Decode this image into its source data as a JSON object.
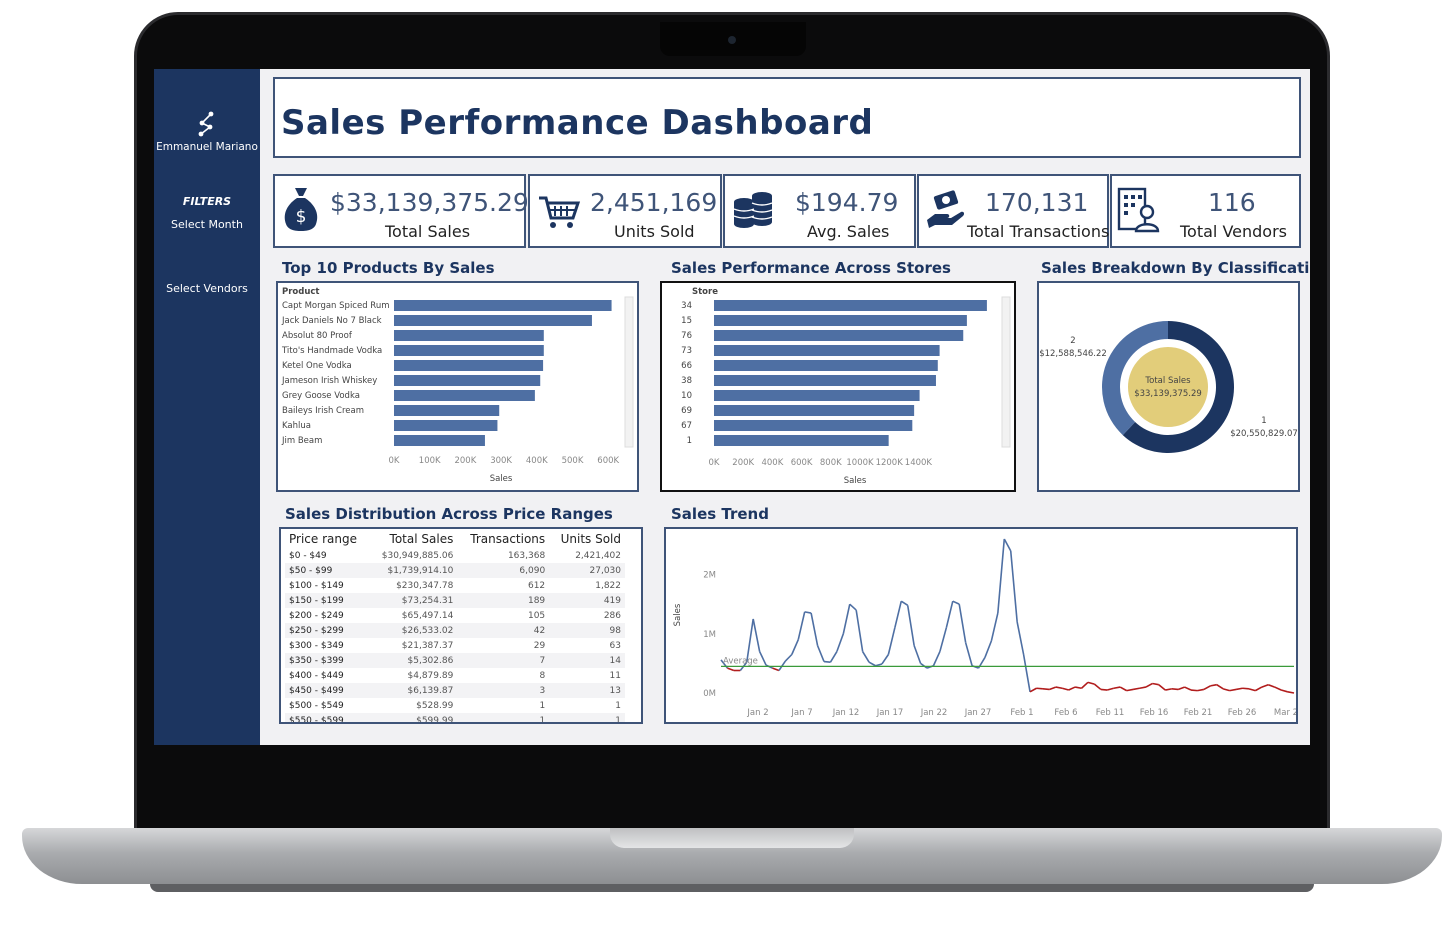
{
  "sidebar": {
    "brand": "Emmanuel Mariano",
    "filters_heading": "FILTERS",
    "select_month": "Select Month",
    "select_vendors": "Select Vendors"
  },
  "header": {
    "title": "Sales Performance  Dashboard"
  },
  "kpis": [
    {
      "value": "$33,139,375.29",
      "label": "Total Sales",
      "icon": "money-bag-icon"
    },
    {
      "value": "2,451,169",
      "label": "Units Sold",
      "icon": "shopping-cart-icon"
    },
    {
      "value": "$194.79",
      "label": "Avg. Sales",
      "icon": "coin-stack-icon"
    },
    {
      "value": "170,131",
      "label": "Total Transactions",
      "icon": "hand-payment-icon"
    },
    {
      "value": "116",
      "label": "Total Vendors",
      "icon": "vendor-building-icon"
    }
  ],
  "colors": {
    "navy": "#1c3560",
    "bar": "#4e6fa3",
    "accent": "#3f5478",
    "gold": "#e2cd7a",
    "average_line": "#3a9a3a",
    "below_avg": "#b11c1c"
  },
  "sections": {
    "top_products": "Top 10  Products By Sales",
    "stores": "Sales Performance Across Stores",
    "classification": "Sales Breakdown By Classification",
    "price_ranges": "Sales Distribution Across Price Ranges",
    "trend": "Sales Trend"
  },
  "chart_data": [
    {
      "type": "bar",
      "title": "Top 10  Products By Sales",
      "category_header": "Product",
      "categories": [
        "Capt Morgan Spiced Rum",
        "Jack Daniels No 7 Black",
        "Absolut 80 Proof",
        "Tito's Handmade Vodka",
        "Ketel One Vodka",
        "Jameson Irish Whiskey",
        "Grey Goose Vodka",
        "Baileys Irish Cream",
        "Kahlua",
        "Jim Beam"
      ],
      "values": [
        610000,
        555000,
        420000,
        420000,
        418000,
        410000,
        395000,
        295000,
        290000,
        255000
      ],
      "xlabel": "Sales",
      "xticks": [
        "0K",
        "100K",
        "200K",
        "300K",
        "400K",
        "500K",
        "600K"
      ],
      "xlim": [
        0,
        600000
      ]
    },
    {
      "type": "bar",
      "title": "Sales Performance Across Stores",
      "category_header": "Store",
      "categories": [
        "34",
        "15",
        "76",
        "73",
        "66",
        "38",
        "10",
        "69",
        "67",
        "1"
      ],
      "values": [
        1500000,
        1390000,
        1370000,
        1240000,
        1230000,
        1220000,
        1130000,
        1100000,
        1090000,
        960000
      ],
      "xlabel": "Sales",
      "xticks": [
        "0K",
        "200K",
        "400K",
        "600K",
        "800K",
        "1000K",
        "1200K",
        "1400K"
      ],
      "xlim": [
        0,
        1550000
      ]
    },
    {
      "type": "pie",
      "title": "Sales Breakdown By Classification",
      "center_label": "Total Sales",
      "center_value": "$33,139,375.29",
      "slices": [
        {
          "name": "1",
          "value": 20550829.07,
          "value_label": "$20,550,829.07"
        },
        {
          "name": "2",
          "value": 12588546.22,
          "value_label": "$12,588,546.22"
        }
      ]
    },
    {
      "type": "line",
      "title": "Sales Trend",
      "ylabel": "Sales",
      "yticks": [
        "0M",
        "1M",
        "2M"
      ],
      "ylim": [
        0,
        2600000
      ],
      "xticks": [
        "Jan 2",
        "Jan 7",
        "Jan 12",
        "Jan 17",
        "Jan 22",
        "Jan 27",
        "Feb 1",
        "Feb 6",
        "Feb 11",
        "Feb 16",
        "Feb 21",
        "Feb 26",
        "Mar 2"
      ],
      "average_label": "Average",
      "average": 450000,
      "series": [
        {
          "values": [
            560000,
            420000,
            380000,
            380000,
            520000,
            1250000,
            700000,
            470000,
            420000,
            380000,
            540000,
            650000,
            900000,
            1370000,
            1350000,
            800000,
            530000,
            520000,
            700000,
            1000000,
            1500000,
            1400000,
            700000,
            520000,
            460000,
            490000,
            650000,
            1100000,
            1550000,
            1480000,
            800000,
            500000,
            420000,
            460000,
            700000,
            1100000,
            1550000,
            1500000,
            850000,
            460000,
            420000,
            600000,
            880000,
            1350000,
            2600000,
            2400000,
            1200000,
            650000,
            20000,
            80000,
            70000,
            60000,
            100000,
            80000,
            50000,
            100000,
            80000,
            180000,
            150000,
            60000,
            50000,
            80000,
            100000,
            40000,
            60000,
            80000,
            100000,
            160000,
            140000,
            50000,
            70000,
            60000,
            100000,
            50000,
            40000,
            60000,
            120000,
            140000,
            70000,
            40000,
            60000,
            80000,
            70000,
            40000,
            100000,
            140000,
            100000,
            50000,
            20000,
            0
          ]
        }
      ]
    }
  ],
  "price_table": {
    "columns": [
      "Price range",
      "Total Sales",
      "Transactions",
      "Units Sold"
    ],
    "rows": [
      [
        "$0 - $49",
        "$30,949,885.06",
        "163,368",
        "2,421,402"
      ],
      [
        "$50 - $99",
        "$1,739,914.10",
        "6,090",
        "27,030"
      ],
      [
        "$100 - $149",
        "$230,347.78",
        "612",
        "1,822"
      ],
      [
        "$150 - $199",
        "$73,254.31",
        "189",
        "419"
      ],
      [
        "$200 - $249",
        "$65,497.14",
        "105",
        "286"
      ],
      [
        "$250 - $299",
        "$26,533.02",
        "42",
        "98"
      ],
      [
        "$300 - $349",
        "$21,387.37",
        "29",
        "63"
      ],
      [
        "$350 - $399",
        "$5,302.86",
        "7",
        "14"
      ],
      [
        "$400 - $449",
        "$4,879.89",
        "8",
        "11"
      ],
      [
        "$450 - $499",
        "$6,139.87",
        "3",
        "13"
      ],
      [
        "$500 - $549",
        "$528.99",
        "1",
        "1"
      ],
      [
        "$550 - $599",
        "$599.99",
        "1",
        "1"
      ]
    ]
  }
}
